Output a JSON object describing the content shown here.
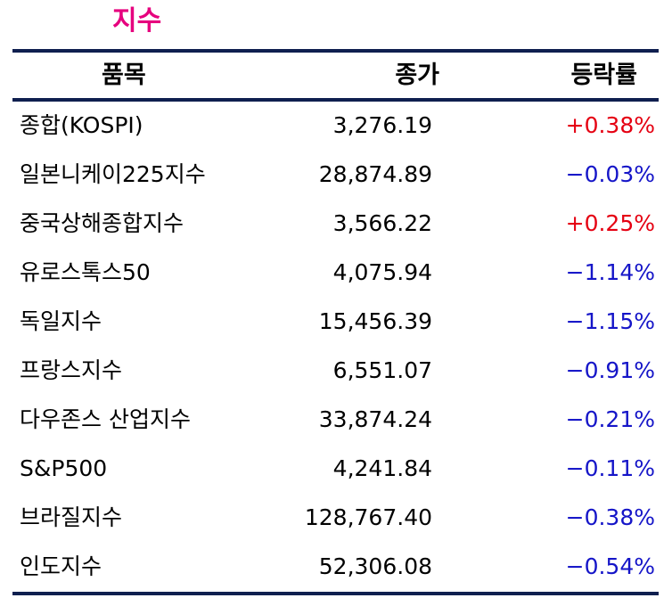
{
  "title": "지수",
  "columns": {
    "name": "품목",
    "price": "종가",
    "change": "등락률"
  },
  "colors": {
    "title": "#e6007e",
    "up": "#e50012",
    "down": "#1515c8",
    "rule": "#0f1f4f"
  },
  "rows": [
    {
      "name": "종합(KOSPI)",
      "price": "3,276.19",
      "change": "+0.38%",
      "direction": "up"
    },
    {
      "name": "일본니케이225지수",
      "price": "28,874.89",
      "change": "−0.03%",
      "direction": "down"
    },
    {
      "name": "중국상해종합지수",
      "price": "3,566.22",
      "change": "+0.25%",
      "direction": "up"
    },
    {
      "name": "유로스톡스50",
      "price": "4,075.94",
      "change": "−1.14%",
      "direction": "down"
    },
    {
      "name": "독일지수",
      "price": "15,456.39",
      "change": "−1.15%",
      "direction": "down"
    },
    {
      "name": "프랑스지수",
      "price": "6,551.07",
      "change": "−0.91%",
      "direction": "down"
    },
    {
      "name": "다우존스 산업지수",
      "price": "33,874.24",
      "change": "−0.21%",
      "direction": "down"
    },
    {
      "name": "S&P500",
      "price": "4,241.84",
      "change": "−0.11%",
      "direction": "down"
    },
    {
      "name": "브라질지수",
      "price": "128,767.40",
      "change": "−0.38%",
      "direction": "down"
    },
    {
      "name": "인도지수",
      "price": "52,306.08",
      "change": "−0.54%",
      "direction": "down"
    }
  ]
}
